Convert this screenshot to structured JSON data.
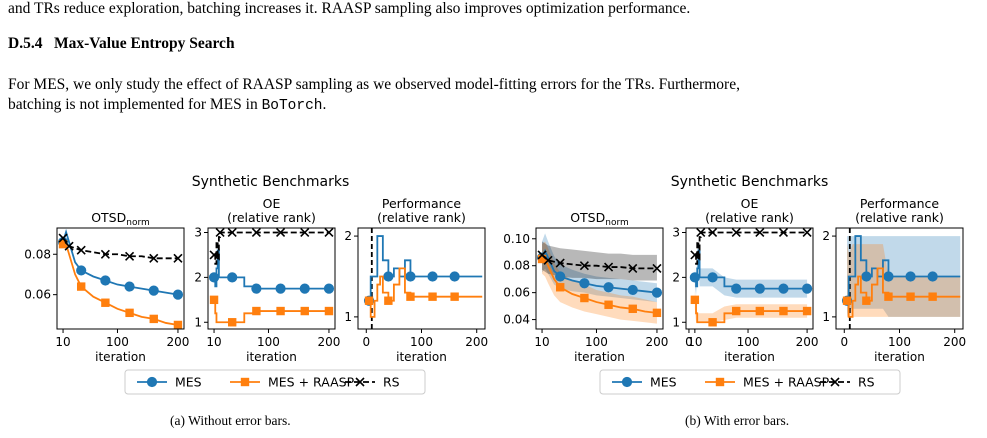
{
  "text": {
    "para1": "and TRs reduce exploration, batching increases it. RAASP sampling also improves optimization performance.",
    "section_number": "D.5.4",
    "section_title": "Max-Value Entropy Search",
    "para2_line1": "For MES, we only study the effect of RAASP sampling as we observed model-fitting errors for the TRs. Furthermore,",
    "para2_line2_pre": "batching is not implemented for MES in ",
    "para2_line2_code": "BoTorch",
    "para2_line2_post": ".",
    "caption_a": "(a) Without error bars.",
    "caption_b": "(b) With error bars."
  },
  "chart_data": [
    {
      "type": "line",
      "group": "a",
      "suptitle": "Synthetic Benchmarks",
      "title": "OTSD",
      "title_sub": "norm",
      "xlabel": "iteration",
      "x_ticks": [
        10,
        100,
        200
      ],
      "xlim": [
        0,
        210
      ],
      "y_ticks": [
        0.06,
        0.08
      ],
      "ylim": [
        0.043,
        0.093
      ],
      "error_bars": false,
      "series": [
        {
          "name": "MES",
          "color": "#1f77b4",
          "marker": "circle",
          "x": [
            10,
            15,
            20,
            30,
            40,
            60,
            80,
            100,
            120,
            140,
            160,
            180,
            200
          ],
          "y": [
            0.086,
            0.091,
            0.086,
            0.076,
            0.072,
            0.069,
            0.067,
            0.065,
            0.064,
            0.063,
            0.062,
            0.061,
            0.06
          ]
        },
        {
          "name": "MES + RAASP",
          "color": "#ff7f0e",
          "marker": "square",
          "x": [
            10,
            15,
            20,
            30,
            40,
            60,
            80,
            100,
            120,
            140,
            160,
            180,
            200
          ],
          "y": [
            0.085,
            0.085,
            0.08,
            0.07,
            0.064,
            0.059,
            0.056,
            0.053,
            0.051,
            0.049,
            0.048,
            0.046,
            0.045
          ]
        },
        {
          "name": "RS",
          "color": "#000000",
          "marker": "x",
          "dashed": true,
          "x": [
            10,
            20,
            40,
            60,
            80,
            100,
            120,
            140,
            160,
            180,
            200
          ],
          "y": [
            0.088,
            0.084,
            0.082,
            0.081,
            0.08,
            0.08,
            0.079,
            0.079,
            0.078,
            0.078,
            0.078
          ]
        }
      ]
    },
    {
      "type": "line",
      "group": "a",
      "title": "OE",
      "title2": "(relative rank)",
      "xlabel": "iteration",
      "x_ticks": [
        10,
        100,
        200
      ],
      "xlim": [
        0,
        210
      ],
      "y_ticks": [
        1,
        2,
        3
      ],
      "ylim": [
        0.85,
        3.1
      ],
      "error_bars": false,
      "series": [
        {
          "name": "MES",
          "color": "#1f77b4",
          "marker": "circle",
          "x": [
            10,
            12,
            14,
            16,
            18,
            20,
            25,
            30,
            40,
            60,
            80,
            100,
            120,
            140,
            160,
            200
          ],
          "y": [
            2.0,
            1.8,
            2.2,
            2.6,
            2.0,
            2.0,
            2.0,
            2.0,
            2.0,
            1.8,
            1.75,
            1.75,
            1.75,
            1.75,
            1.75,
            1.75
          ]
        },
        {
          "name": "MES + RAASP",
          "color": "#ff7f0e",
          "marker": "square",
          "x": [
            10,
            12,
            14,
            16,
            18,
            20,
            25,
            30,
            40,
            60,
            80,
            100,
            120,
            140,
            160,
            200
          ],
          "y": [
            1.5,
            1.2,
            1.0,
            1.0,
            1.0,
            1.0,
            1.0,
            1.0,
            1.0,
            1.2,
            1.25,
            1.25,
            1.25,
            1.25,
            1.25,
            1.25
          ]
        },
        {
          "name": "RS",
          "color": "#000000",
          "marker": "x",
          "dashed": true,
          "x": [
            10,
            12,
            14,
            16,
            18,
            20,
            25,
            30,
            40,
            60,
            80,
            100,
            120,
            140,
            160,
            200
          ],
          "y": [
            2.5,
            2.3,
            2.8,
            2.4,
            2.9,
            3.0,
            3.0,
            3.0,
            3.0,
            3.0,
            3.0,
            3.0,
            3.0,
            3.0,
            3.0,
            3.0
          ]
        }
      ]
    },
    {
      "type": "line",
      "group": "a",
      "title": "Performance",
      "title2": "(relative rank)",
      "xlabel": "iteration",
      "x_ticks": [
        0,
        100,
        200
      ],
      "xlim": [
        -15,
        215
      ],
      "y_ticks": [
        1,
        2
      ],
      "ylim": [
        0.85,
        2.1
      ],
      "vline_x": 10,
      "error_bars": false,
      "series": [
        {
          "name": "MES",
          "color": "#1f77b4",
          "marker": "circle",
          "x": [
            5,
            8,
            10,
            15,
            20,
            25,
            30,
            40,
            50,
            60,
            70,
            80,
            120,
            160,
            210
          ],
          "y": [
            1.2,
            1.5,
            1.5,
            1.5,
            2.0,
            2.0,
            1.7,
            1.5,
            1.6,
            1.5,
            1.7,
            1.5,
            1.5,
            1.5,
            1.5
          ]
        },
        {
          "name": "MES + RAASP",
          "color": "#ff7f0e",
          "marker": "square",
          "x": [
            5,
            8,
            10,
            15,
            20,
            25,
            30,
            40,
            50,
            60,
            70,
            80,
            120,
            160,
            210
          ],
          "y": [
            1.2,
            1.0,
            1.0,
            1.2,
            1.4,
            1.5,
            1.3,
            1.2,
            1.4,
            1.6,
            1.3,
            1.25,
            1.25,
            1.25,
            1.25
          ]
        }
      ]
    },
    {
      "type": "line",
      "group": "b",
      "suptitle": "Synthetic Benchmarks",
      "title": "OTSD",
      "title_sub": "norm",
      "xlabel": "iteration",
      "x_ticks": [
        10,
        100,
        200
      ],
      "xlim": [
        0,
        210
      ],
      "y_ticks": [
        0.04,
        0.06,
        0.08,
        0.1
      ],
      "ylim": [
        0.033,
        0.108
      ],
      "error_bars": true,
      "series": [
        {
          "name": "MES",
          "color": "#1f77b4",
          "marker": "circle",
          "x": [
            10,
            15,
            20,
            30,
            40,
            60,
            80,
            100,
            120,
            140,
            160,
            180,
            200
          ],
          "y": [
            0.086,
            0.091,
            0.086,
            0.076,
            0.072,
            0.069,
            0.067,
            0.065,
            0.064,
            0.063,
            0.062,
            0.061,
            0.06
          ],
          "lower": [
            0.075,
            0.078,
            0.074,
            0.066,
            0.063,
            0.061,
            0.06,
            0.058,
            0.057,
            0.056,
            0.055,
            0.054,
            0.053
          ],
          "upper": [
            0.098,
            0.104,
            0.098,
            0.087,
            0.081,
            0.077,
            0.074,
            0.072,
            0.071,
            0.07,
            0.069,
            0.068,
            0.067
          ]
        },
        {
          "name": "MES + RAASP",
          "color": "#ff7f0e",
          "marker": "square",
          "x": [
            10,
            15,
            20,
            30,
            40,
            60,
            80,
            100,
            120,
            140,
            160,
            180,
            200
          ],
          "y": [
            0.085,
            0.085,
            0.08,
            0.07,
            0.064,
            0.059,
            0.056,
            0.053,
            0.051,
            0.049,
            0.048,
            0.046,
            0.045
          ],
          "lower": [
            0.074,
            0.072,
            0.067,
            0.058,
            0.053,
            0.049,
            0.046,
            0.044,
            0.042,
            0.04,
            0.039,
            0.038,
            0.037
          ],
          "upper": [
            0.096,
            0.098,
            0.093,
            0.082,
            0.075,
            0.069,
            0.066,
            0.062,
            0.06,
            0.058,
            0.057,
            0.055,
            0.053
          ]
        },
        {
          "name": "RS",
          "color": "#000000",
          "marker": "x",
          "dashed": true,
          "x": [
            10,
            20,
            40,
            60,
            80,
            100,
            120,
            140,
            160,
            180,
            200
          ],
          "y": [
            0.088,
            0.084,
            0.082,
            0.081,
            0.08,
            0.08,
            0.079,
            0.079,
            0.078,
            0.078,
            0.078
          ],
          "lower": [
            0.077,
            0.074,
            0.072,
            0.071,
            0.071,
            0.07,
            0.07,
            0.07,
            0.069,
            0.069,
            0.069
          ],
          "upper": [
            0.098,
            0.095,
            0.093,
            0.092,
            0.091,
            0.09,
            0.089,
            0.089,
            0.088,
            0.088,
            0.088
          ]
        }
      ]
    },
    {
      "type": "line",
      "group": "b",
      "title": "OE",
      "title2": "(relative rank)",
      "xlabel": "iteration",
      "x_ticks": [
        0,
        10,
        100,
        200
      ],
      "xlim": [
        -5,
        210
      ],
      "y_ticks": [
        1,
        2,
        3
      ],
      "ylim": [
        0.85,
        3.1
      ],
      "error_bars": true,
      "series": [
        {
          "name": "MES",
          "color": "#1f77b4",
          "marker": "circle",
          "x": [
            10,
            12,
            14,
            16,
            18,
            20,
            25,
            30,
            40,
            60,
            80,
            100,
            120,
            140,
            160,
            200
          ],
          "y": [
            2.0,
            1.8,
            2.2,
            2.6,
            2.0,
            2.0,
            2.0,
            2.0,
            2.0,
            1.8,
            1.75,
            1.75,
            1.75,
            1.75,
            1.75,
            1.75
          ],
          "lower": [
            1.8,
            1.6,
            2.0,
            2.3,
            1.8,
            1.8,
            1.8,
            1.8,
            1.8,
            1.6,
            1.55,
            1.55,
            1.55,
            1.55,
            1.55,
            1.55
          ],
          "upper": [
            2.2,
            2.0,
            2.4,
            2.8,
            2.2,
            2.2,
            2.2,
            2.2,
            2.2,
            2.0,
            1.95,
            1.95,
            1.95,
            1.95,
            1.95,
            1.95
          ]
        },
        {
          "name": "MES + RAASP",
          "color": "#ff7f0e",
          "marker": "square",
          "x": [
            10,
            12,
            14,
            16,
            18,
            20,
            25,
            30,
            40,
            60,
            80,
            100,
            120,
            140,
            160,
            200
          ],
          "y": [
            1.5,
            1.2,
            1.0,
            1.0,
            1.0,
            1.0,
            1.0,
            1.0,
            1.0,
            1.2,
            1.25,
            1.25,
            1.25,
            1.25,
            1.25,
            1.25
          ],
          "lower": [
            1.3,
            1.0,
            1.0,
            1.0,
            1.0,
            1.0,
            1.0,
            1.0,
            1.0,
            1.05,
            1.1,
            1.1,
            1.1,
            1.1,
            1.1,
            1.1
          ],
          "upper": [
            1.7,
            1.4,
            1.2,
            1.2,
            1.2,
            1.2,
            1.2,
            1.2,
            1.2,
            1.35,
            1.4,
            1.4,
            1.4,
            1.4,
            1.4,
            1.4
          ]
        },
        {
          "name": "RS",
          "color": "#000000",
          "marker": "x",
          "dashed": true,
          "x": [
            10,
            12,
            14,
            16,
            18,
            20,
            25,
            30,
            40,
            60,
            80,
            100,
            120,
            140,
            160,
            200
          ],
          "y": [
            2.5,
            2.3,
            2.8,
            2.4,
            2.9,
            3.0,
            3.0,
            3.0,
            3.0,
            3.0,
            3.0,
            3.0,
            3.0,
            3.0,
            3.0,
            3.0
          ]
        }
      ]
    },
    {
      "type": "line",
      "group": "b",
      "title": "Performance",
      "title2": "(relative rank)",
      "xlabel": "iteration",
      "x_ticks": [
        0,
        100,
        200
      ],
      "xlim": [
        -15,
        215
      ],
      "y_ticks": [
        1,
        2
      ],
      "ylim": [
        0.85,
        2.1
      ],
      "vline_x": 10,
      "error_bars": true,
      "series": [
        {
          "name": "MES",
          "color": "#1f77b4",
          "marker": "circle",
          "x": [
            5,
            8,
            10,
            15,
            20,
            25,
            30,
            40,
            50,
            60,
            70,
            80,
            120,
            160,
            210
          ],
          "y": [
            1.2,
            1.5,
            1.5,
            1.5,
            2.0,
            2.0,
            1.7,
            1.5,
            1.6,
            1.5,
            1.7,
            1.5,
            1.5,
            1.5,
            1.5
          ],
          "lower": [
            1.0,
            1.1,
            1.1,
            1.1,
            1.1,
            1.1,
            1.1,
            1.1,
            1.1,
            1.1,
            1.1,
            1.0,
            1.0,
            1.0,
            1.0
          ],
          "upper": [
            2.0,
            2.0,
            2.0,
            2.0,
            2.0,
            2.0,
            2.0,
            2.0,
            2.0,
            2.0,
            2.0,
            2.0,
            2.0,
            2.0,
            2.0
          ]
        },
        {
          "name": "MES + RAASP",
          "color": "#ff7f0e",
          "marker": "square",
          "x": [
            5,
            8,
            10,
            15,
            20,
            25,
            30,
            40,
            50,
            60,
            70,
            80,
            120,
            160,
            210
          ],
          "y": [
            1.2,
            1.0,
            1.0,
            1.2,
            1.4,
            1.5,
            1.3,
            1.2,
            1.4,
            1.6,
            1.3,
            1.25,
            1.25,
            1.25,
            1.25
          ],
          "lower": [
            1.0,
            1.0,
            1.0,
            1.0,
            1.0,
            1.0,
            1.0,
            1.0,
            1.0,
            1.0,
            1.0,
            1.0,
            1.0,
            1.0,
            1.0
          ],
          "upper": [
            1.9,
            1.8,
            1.8,
            1.9,
            1.9,
            1.9,
            1.9,
            1.9,
            1.9,
            1.9,
            1.9,
            1.5,
            1.5,
            1.5,
            1.5
          ]
        }
      ]
    }
  ],
  "legend": {
    "items": [
      {
        "name": "MES",
        "color": "#1f77b4",
        "marker": "circle"
      },
      {
        "name": "MES + RAASP",
        "color": "#ff7f0e",
        "marker": "square"
      },
      {
        "name": "RS",
        "color": "#000000",
        "marker": "x",
        "dashed": true
      }
    ]
  }
}
